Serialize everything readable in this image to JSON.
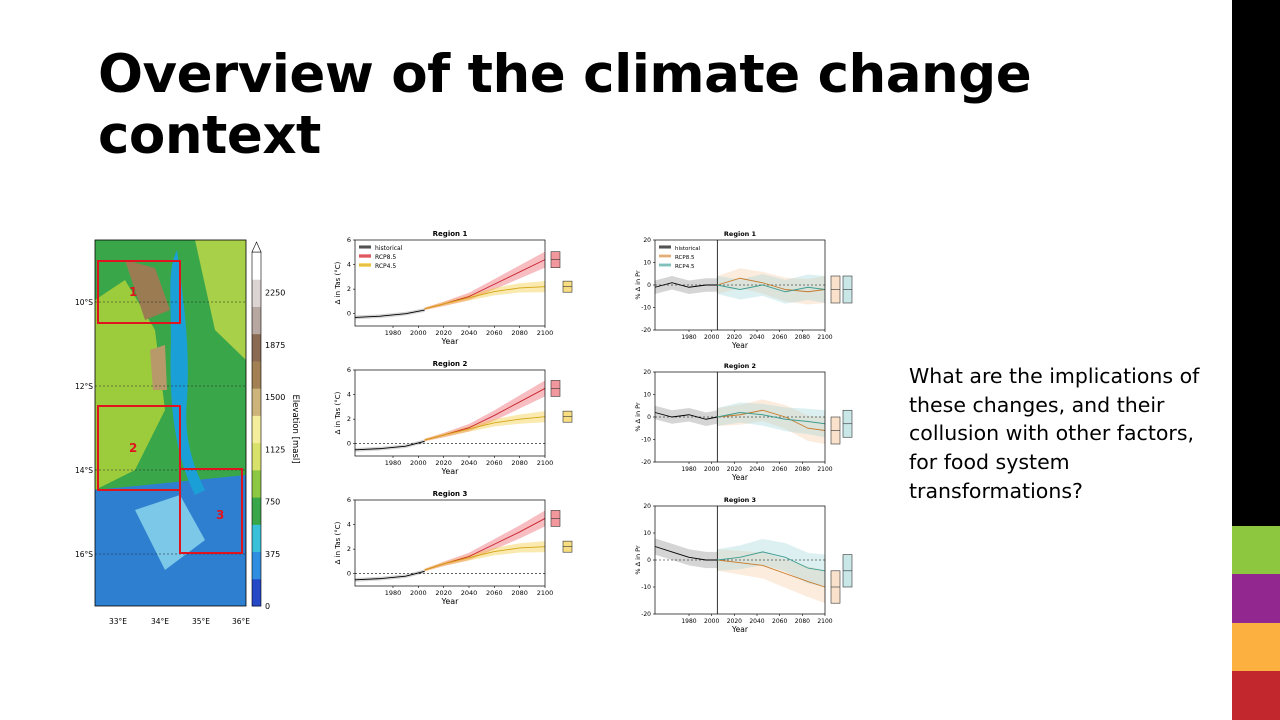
{
  "slide": {
    "title": "Overview of the climate change context",
    "question": "What are the implications of these changes, and their collusion with other factors, for food system transformations?"
  },
  "colors": {
    "bar_black": "#000000",
    "bar_green": "#8dc63f",
    "bar_purple": "#92278f",
    "bar_orange": "#fbb040",
    "bar_red": "#c1272d",
    "historical": "#000000",
    "rcp85_temp": "#e8434d",
    "rcp45_temp": "#f2c21b",
    "rcp85_pr": "#c77a2b",
    "rcp45_pr": "#3f9c8f"
  },
  "map": {
    "colorbar_label": "Elevation [masl]",
    "colorbar_ticks": [
      "0",
      "375",
      "750",
      "1125",
      "1500",
      "1875",
      "2250"
    ],
    "lat_labels": [
      "10°S",
      "12°S",
      "14°S",
      "16°S"
    ],
    "lon_labels": [
      "33°E",
      "34°E",
      "35°E",
      "36°E"
    ],
    "regions": [
      "1",
      "2",
      "3"
    ]
  },
  "chart_data": [
    {
      "type": "line",
      "title": "Region 1",
      "xlabel": "Year",
      "ylabel": "Δ in Tas (°C)",
      "xlim": [
        1950,
        2100
      ],
      "ylim": [
        -1,
        6
      ],
      "xticks": [
        "1980",
        "2000",
        "2020",
        "2040",
        "2060",
        "2080",
        "2100"
      ],
      "yticks": [
        "0",
        "2",
        "4",
        "6"
      ],
      "legend": [
        "historical",
        "RCP8.5",
        "RCP4.5"
      ],
      "series": [
        {
          "name": "historical",
          "x": [
            1950,
            1970,
            1990,
            2005
          ],
          "y": [
            -0.3,
            -0.2,
            0.0,
            0.3
          ]
        },
        {
          "name": "RCP8.5",
          "x": [
            2005,
            2020,
            2040,
            2060,
            2080,
            2100
          ],
          "y": [
            0.4,
            0.8,
            1.4,
            2.4,
            3.4,
            4.4
          ]
        },
        {
          "name": "RCP4.5",
          "x": [
            2005,
            2020,
            2040,
            2060,
            2080,
            2100
          ],
          "y": [
            0.4,
            0.8,
            1.3,
            1.8,
            2.1,
            2.2
          ]
        }
      ]
    },
    {
      "type": "line",
      "title": "Region 2",
      "xlabel": "Year",
      "ylabel": "Δ in Tas (°C)",
      "xlim": [
        1950,
        2100
      ],
      "ylim": [
        -1,
        6
      ],
      "xticks": [
        "1980",
        "2000",
        "2020",
        "2040",
        "2060",
        "2080",
        "2100"
      ],
      "yticks": [
        "0",
        "2",
        "4",
        "6"
      ],
      "series": [
        {
          "name": "historical",
          "x": [
            1950,
            1970,
            1990,
            2005
          ],
          "y": [
            -0.5,
            -0.4,
            -0.2,
            0.2
          ]
        },
        {
          "name": "RCP8.5",
          "x": [
            2005,
            2020,
            2040,
            2060,
            2080,
            2100
          ],
          "y": [
            0.3,
            0.7,
            1.3,
            2.3,
            3.4,
            4.5
          ]
        },
        {
          "name": "RCP4.5",
          "x": [
            2005,
            2020,
            2040,
            2060,
            2080,
            2100
          ],
          "y": [
            0.3,
            0.7,
            1.2,
            1.7,
            2.0,
            2.2
          ]
        }
      ]
    },
    {
      "type": "line",
      "title": "Region 3",
      "xlabel": "Year",
      "ylabel": "Δ in Tas (°C)",
      "xlim": [
        1950,
        2100
      ],
      "ylim": [
        -1,
        6
      ],
      "xticks": [
        "1980",
        "2000",
        "2020",
        "2040",
        "2060",
        "2080",
        "2100"
      ],
      "yticks": [
        "0",
        "2",
        "4",
        "6"
      ],
      "series": [
        {
          "name": "historical",
          "x": [
            1950,
            1970,
            1990,
            2005
          ],
          "y": [
            -0.5,
            -0.4,
            -0.2,
            0.2
          ]
        },
        {
          "name": "RCP8.5",
          "x": [
            2005,
            2020,
            2040,
            2060,
            2080,
            2100
          ],
          "y": [
            0.3,
            0.8,
            1.4,
            2.4,
            3.4,
            4.5
          ]
        },
        {
          "name": "RCP4.5",
          "x": [
            2005,
            2020,
            2040,
            2060,
            2080,
            2100
          ],
          "y": [
            0.3,
            0.8,
            1.3,
            1.8,
            2.1,
            2.2
          ]
        }
      ]
    },
    {
      "type": "line",
      "title": "Region 1",
      "xlabel": "Year",
      "ylabel": "% Δ in Pr",
      "xlim": [
        1950,
        2100
      ],
      "ylim": [
        -20,
        20
      ],
      "xticks": [
        "1980",
        "2000",
        "2020",
        "2040",
        "2060",
        "2080",
        "2100"
      ],
      "yticks": [
        "-20",
        "-10",
        "0",
        "10",
        "20"
      ],
      "legend": [
        "historical",
        "RCP8.5",
        "RCP4.5"
      ],
      "series": [
        {
          "name": "historical",
          "x": [
            1950,
            1965,
            1980,
            1995,
            2005
          ],
          "y": [
            -1,
            1,
            -1,
            0,
            0
          ]
        },
        {
          "name": "RCP8.5",
          "x": [
            2005,
            2025,
            2045,
            2065,
            2085,
            2100
          ],
          "y": [
            0,
            3,
            1,
            -2,
            -3,
            -2
          ]
        },
        {
          "name": "RCP4.5",
          "x": [
            2005,
            2025,
            2045,
            2065,
            2085,
            2100
          ],
          "y": [
            0,
            -2,
            0,
            -3,
            -1,
            -2
          ]
        }
      ]
    },
    {
      "type": "line",
      "title": "Region 2",
      "xlabel": "Year",
      "ylabel": "% Δ in Pr",
      "xlim": [
        1950,
        2100
      ],
      "ylim": [
        -20,
        20
      ],
      "xticks": [
        "1980",
        "2000",
        "2020",
        "2040",
        "2060",
        "2080",
        "2100"
      ],
      "yticks": [
        "-20",
        "-10",
        "0",
        "10",
        "20"
      ],
      "series": [
        {
          "name": "historical",
          "x": [
            1950,
            1965,
            1980,
            1995,
            2005
          ],
          "y": [
            2,
            0,
            1,
            -1,
            0
          ]
        },
        {
          "name": "RCP8.5",
          "x": [
            2005,
            2025,
            2045,
            2065,
            2085,
            2100
          ],
          "y": [
            0,
            1,
            3,
            0,
            -5,
            -6
          ]
        },
        {
          "name": "RCP4.5",
          "x": [
            2005,
            2025,
            2045,
            2065,
            2085,
            2100
          ],
          "y": [
            0,
            2,
            1,
            -1,
            -2,
            -3
          ]
        }
      ]
    },
    {
      "type": "line",
      "title": "Region 3",
      "xlabel": "Year",
      "ylabel": "% Δ in Pr",
      "xlim": [
        1950,
        2100
      ],
      "ylim": [
        -20,
        20
      ],
      "xticks": [
        "1980",
        "2000",
        "2020",
        "2040",
        "2060",
        "2080",
        "2100"
      ],
      "yticks": [
        "-20",
        "-10",
        "0",
        "10",
        "20"
      ],
      "series": [
        {
          "name": "historical",
          "x": [
            1950,
            1965,
            1980,
            1995,
            2005
          ],
          "y": [
            5,
            3,
            1,
            0,
            0
          ]
        },
        {
          "name": "RCP8.5",
          "x": [
            2005,
            2025,
            2045,
            2065,
            2085,
            2100
          ],
          "y": [
            0,
            -1,
            -2,
            -5,
            -8,
            -10
          ]
        },
        {
          "name": "RCP4.5",
          "x": [
            2005,
            2025,
            2045,
            2065,
            2085,
            2100
          ],
          "y": [
            0,
            1,
            3,
            1,
            -3,
            -4
          ]
        }
      ]
    }
  ]
}
